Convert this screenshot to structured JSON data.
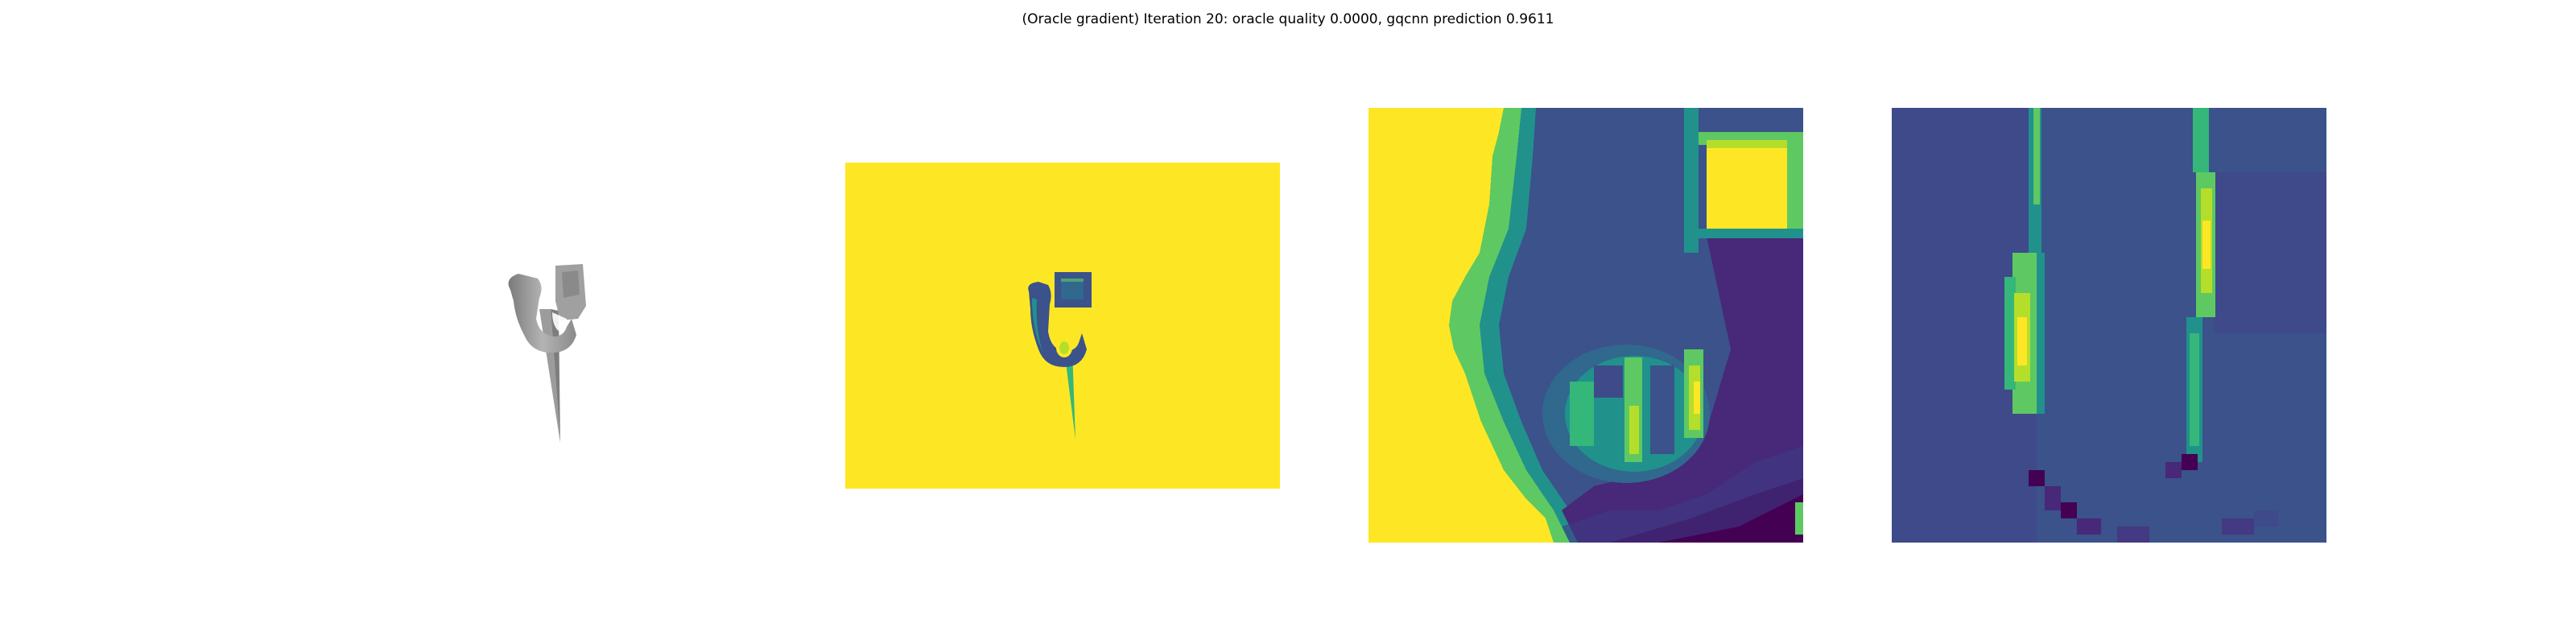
{
  "figure": {
    "title": "(Oracle gradient) Iteration 20: oracle quality 0.0000, gqcnn prediction 0.9611"
  },
  "panels": [
    {
      "id": "rendered-object",
      "kind": "grayscale rendering"
    },
    {
      "id": "depth-image",
      "kind": "depth image, viridis colormap"
    },
    {
      "id": "depth-crop",
      "kind": "pixelated depth crop, viridis colormap"
    },
    {
      "id": "oracle-gradient",
      "kind": "pixelated gradient map, viridis colormap"
    }
  ],
  "colors": {
    "viridis_dark": "#440154",
    "viridis_indigo": "#3b528b",
    "viridis_slate": "#31688e",
    "viridis_teal": "#21918c",
    "viridis_green": "#5ec962",
    "viridis_lime": "#b5de2b",
    "viridis_yellow": "#fde725",
    "object_gray": "#9a9a9a"
  }
}
